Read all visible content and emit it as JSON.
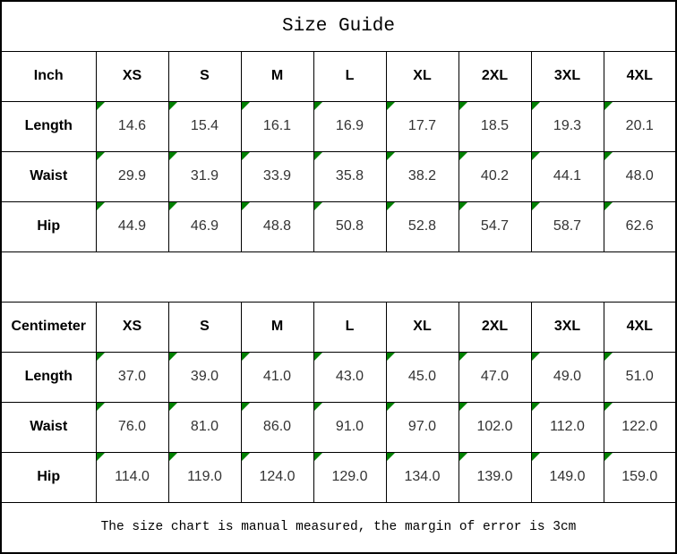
{
  "title": "Size Guide",
  "footer_note": "The size chart is manual measured, the margin of error is 3cm",
  "colors": {
    "border": "#000000",
    "flag_triangle_green": "#008000",
    "value_text": "#333333",
    "label_text": "#000000",
    "background": "#ffffff"
  },
  "tables": [
    {
      "unit_label": "Inch",
      "sizes": [
        "XS",
        "S",
        "M",
        "L",
        "XL",
        "2XL",
        "3XL",
        "4XL"
      ],
      "rows": [
        {
          "label": "Length",
          "values": [
            "14.6",
            "15.4",
            "16.1",
            "16.9",
            "17.7",
            "18.5",
            "19.3",
            "20.1"
          ]
        },
        {
          "label": "Waist",
          "values": [
            "29.9",
            "31.9",
            "33.9",
            "35.8",
            "38.2",
            "40.2",
            "44.1",
            "48.0"
          ]
        },
        {
          "label": "Hip",
          "values": [
            "44.9",
            "46.9",
            "48.8",
            "50.8",
            "52.8",
            "54.7",
            "58.7",
            "62.6"
          ]
        }
      ]
    },
    {
      "unit_label": "Centimeter",
      "sizes": [
        "XS",
        "S",
        "M",
        "L",
        "XL",
        "2XL",
        "3XL",
        "4XL"
      ],
      "rows": [
        {
          "label": "Length",
          "values": [
            "37.0",
            "39.0",
            "41.0",
            "43.0",
            "45.0",
            "47.0",
            "49.0",
            "51.0"
          ]
        },
        {
          "label": "Waist",
          "values": [
            "76.0",
            "81.0",
            "86.0",
            "91.0",
            "97.0",
            "102.0",
            "112.0",
            "122.0"
          ]
        },
        {
          "label": "Hip",
          "values": [
            "114.0",
            "119.0",
            "124.0",
            "129.0",
            "134.0",
            "139.0",
            "149.0",
            "159.0"
          ]
        }
      ]
    }
  ]
}
